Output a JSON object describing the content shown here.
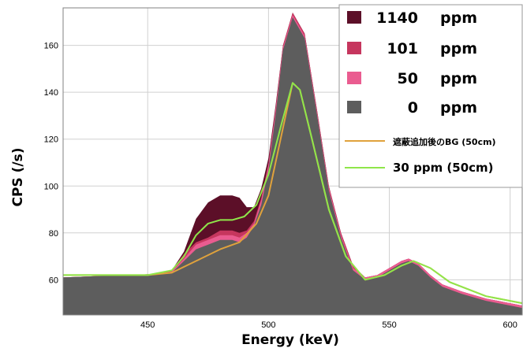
{
  "chart_data": {
    "type": "area",
    "title": "",
    "xlabel": "Energy (keV)",
    "ylabel": "CPS (/s)",
    "xlim": [
      415,
      605
    ],
    "ylim": [
      45,
      176
    ],
    "xticks": [
      450,
      500,
      550,
      600
    ],
    "yticks": [
      60,
      80,
      100,
      120,
      140,
      160
    ],
    "grid": true,
    "legend_position": "top-right",
    "area_series": [
      {
        "name": "1140 ppm",
        "color": "#5c0f28",
        "points": [
          [
            415,
            61
          ],
          [
            440,
            62
          ],
          [
            455,
            62.5
          ],
          [
            460,
            64
          ],
          [
            465,
            72
          ],
          [
            470,
            86
          ],
          [
            475,
            93
          ],
          [
            480,
            96
          ],
          [
            485,
            96
          ],
          [
            488,
            95
          ],
          [
            491,
            91
          ],
          [
            494,
            91
          ],
          [
            497,
            99
          ],
          [
            500,
            112
          ],
          [
            503,
            135
          ],
          [
            506,
            160
          ],
          [
            510,
            174
          ],
          [
            515,
            165
          ],
          [
            520,
            133
          ],
          [
            525,
            100
          ],
          [
            530,
            80
          ],
          [
            535,
            66
          ],
          [
            540,
            61
          ],
          [
            545,
            62
          ],
          [
            550,
            65
          ],
          [
            555,
            68
          ],
          [
            558,
            69
          ],
          [
            562,
            67
          ],
          [
            567,
            62
          ],
          [
            572,
            58
          ],
          [
            580,
            55
          ],
          [
            590,
            52
          ],
          [
            605,
            49
          ]
        ]
      },
      {
        "name": "101 ppm",
        "color": "#c6365e",
        "points": [
          [
            415,
            61
          ],
          [
            440,
            62
          ],
          [
            455,
            62.5
          ],
          [
            460,
            64
          ],
          [
            465,
            71
          ],
          [
            470,
            76
          ],
          [
            475,
            78
          ],
          [
            480,
            81
          ],
          [
            485,
            81
          ],
          [
            488,
            80
          ],
          [
            491,
            81
          ],
          [
            494,
            85
          ],
          [
            497,
            95
          ],
          [
            500,
            110
          ],
          [
            503,
            134
          ],
          [
            506,
            160
          ],
          [
            510,
            174
          ],
          [
            515,
            165
          ],
          [
            520,
            133
          ],
          [
            525,
            100
          ],
          [
            530,
            80
          ],
          [
            535,
            66
          ],
          [
            540,
            61
          ],
          [
            545,
            62
          ],
          [
            550,
            65
          ],
          [
            555,
            68
          ],
          [
            558,
            69
          ],
          [
            562,
            67
          ],
          [
            567,
            62
          ],
          [
            572,
            58
          ],
          [
            580,
            55
          ],
          [
            590,
            52
          ],
          [
            605,
            49
          ]
        ]
      },
      {
        "name": "50 ppm",
        "color": "#ea5c90",
        "points": [
          [
            415,
            61
          ],
          [
            440,
            62
          ],
          [
            455,
            62.5
          ],
          [
            460,
            63.5
          ],
          [
            465,
            69
          ],
          [
            470,
            75
          ],
          [
            475,
            77
          ],
          [
            480,
            79
          ],
          [
            485,
            79
          ],
          [
            488,
            78
          ],
          [
            491,
            80
          ],
          [
            494,
            84
          ],
          [
            497,
            94
          ],
          [
            500,
            109
          ],
          [
            503,
            133
          ],
          [
            506,
            159
          ],
          [
            510,
            173
          ],
          [
            515,
            164
          ],
          [
            520,
            132
          ],
          [
            525,
            99
          ],
          [
            530,
            79
          ],
          [
            535,
            65
          ],
          [
            540,
            61
          ],
          [
            545,
            62
          ],
          [
            550,
            65
          ],
          [
            555,
            68
          ],
          [
            558,
            69
          ],
          [
            562,
            67
          ],
          [
            567,
            62
          ],
          [
            572,
            58
          ],
          [
            580,
            55
          ],
          [
            590,
            52
          ],
          [
            605,
            49
          ]
        ]
      },
      {
        "name": "0 ppm",
        "color": "#5d5d5d",
        "points": [
          [
            415,
            61
          ],
          [
            440,
            62
          ],
          [
            455,
            62.5
          ],
          [
            460,
            63
          ],
          [
            465,
            68
          ],
          [
            470,
            73
          ],
          [
            475,
            75
          ],
          [
            480,
            77
          ],
          [
            485,
            77
          ],
          [
            488,
            76
          ],
          [
            491,
            78
          ],
          [
            494,
            83
          ],
          [
            497,
            92
          ],
          [
            500,
            107
          ],
          [
            503,
            131
          ],
          [
            506,
            158
          ],
          [
            510,
            172
          ],
          [
            515,
            163
          ],
          [
            520,
            131
          ],
          [
            525,
            98
          ],
          [
            530,
            78
          ],
          [
            535,
            64
          ],
          [
            540,
            60
          ],
          [
            545,
            61
          ],
          [
            550,
            64
          ],
          [
            555,
            67
          ],
          [
            558,
            68
          ],
          [
            562,
            66
          ],
          [
            567,
            61
          ],
          [
            572,
            57
          ],
          [
            580,
            54
          ],
          [
            590,
            51
          ],
          [
            605,
            48
          ]
        ]
      }
    ],
    "line_series": [
      {
        "name": "遮蔽追加後のBG (50cm)",
        "color": "#e0a23c",
        "points": [
          [
            415,
            62
          ],
          [
            450,
            62
          ],
          [
            460,
            63
          ],
          [
            470,
            68
          ],
          [
            480,
            73
          ],
          [
            488,
            76
          ],
          [
            495,
            84
          ],
          [
            500,
            96
          ],
          [
            505,
            120
          ],
          [
            510,
            144
          ],
          [
            513,
            141
          ],
          [
            518,
            120
          ],
          [
            525,
            90
          ],
          [
            532,
            70
          ],
          [
            540,
            60
          ],
          [
            548,
            62
          ],
          [
            555,
            66
          ],
          [
            560,
            68
          ],
          [
            567,
            65
          ],
          [
            575,
            59
          ],
          [
            590,
            53
          ],
          [
            605,
            50
          ]
        ]
      },
      {
        "name": "30 ppm (50cm)",
        "color": "#8fe64a",
        "points": [
          [
            415,
            62
          ],
          [
            450,
            62
          ],
          [
            460,
            64
          ],
          [
            465,
            70
          ],
          [
            470,
            79
          ],
          [
            475,
            84
          ],
          [
            480,
            85.5
          ],
          [
            485,
            85.5
          ],
          [
            490,
            87
          ],
          [
            495,
            92
          ],
          [
            500,
            105
          ],
          [
            505,
            125
          ],
          [
            510,
            144
          ],
          [
            513,
            141
          ],
          [
            518,
            120
          ],
          [
            525,
            90
          ],
          [
            532,
            70
          ],
          [
            540,
            60
          ],
          [
            548,
            62
          ],
          [
            555,
            66
          ],
          [
            560,
            68
          ],
          [
            567,
            65
          ],
          [
            575,
            59
          ],
          [
            590,
            53
          ],
          [
            605,
            50
          ]
        ]
      }
    ]
  }
}
